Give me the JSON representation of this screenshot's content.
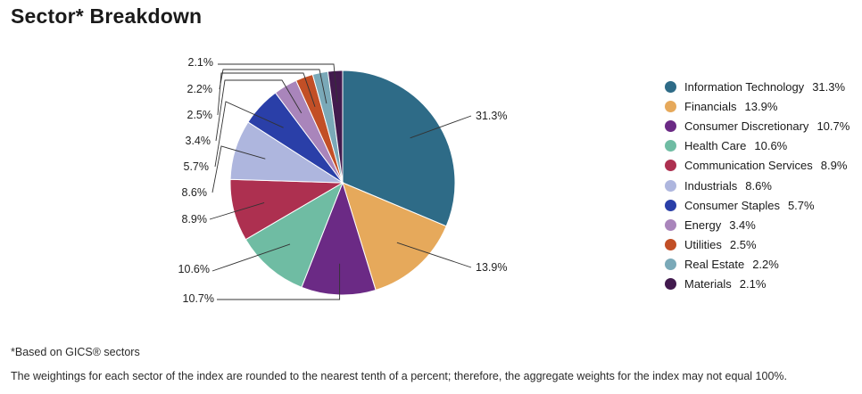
{
  "header": {
    "title": "Sector* Breakdown"
  },
  "chart_data": {
    "type": "pie",
    "slices": [
      {
        "label": "Information Technology",
        "value": 31.3,
        "display": "31.3%",
        "color": "#2e6b87"
      },
      {
        "label": "Financials",
        "value": 13.9,
        "display": "13.9%",
        "color": "#e6a95b"
      },
      {
        "label": "Consumer Discretionary",
        "value": 10.7,
        "display": "10.7%",
        "color": "#6b2a85"
      },
      {
        "label": "Health Care",
        "value": 10.6,
        "display": "10.6%",
        "color": "#6fbca3"
      },
      {
        "label": "Communication Services",
        "value": 8.9,
        "display": "8.9%",
        "color": "#ad3050"
      },
      {
        "label": "Industrials",
        "value": 8.6,
        "display": "8.6%",
        "color": "#aeb6de"
      },
      {
        "label": "Consumer Staples",
        "value": 5.7,
        "display": "5.7%",
        "color": "#2a3fa8"
      },
      {
        "label": "Energy",
        "value": 3.4,
        "display": "3.4%",
        "color": "#a985bb"
      },
      {
        "label": "Utilities",
        "value": 2.5,
        "display": "2.5%",
        "color": "#c24f26"
      },
      {
        "label": "Real Estate",
        "value": 2.2,
        "display": "2.2%",
        "color": "#7aa9b8"
      },
      {
        "label": "Materials",
        "value": 2.1,
        "display": "2.1%",
        "color": "#421a4e"
      }
    ],
    "legend_position": "right"
  },
  "footer": {
    "footnote": "*Based on GICS® sectors",
    "disclaimer": "The weightings for each sector of the index are rounded to the nearest tenth of a percent; therefore, the aggregate weights for the index may not equal 100%."
  }
}
